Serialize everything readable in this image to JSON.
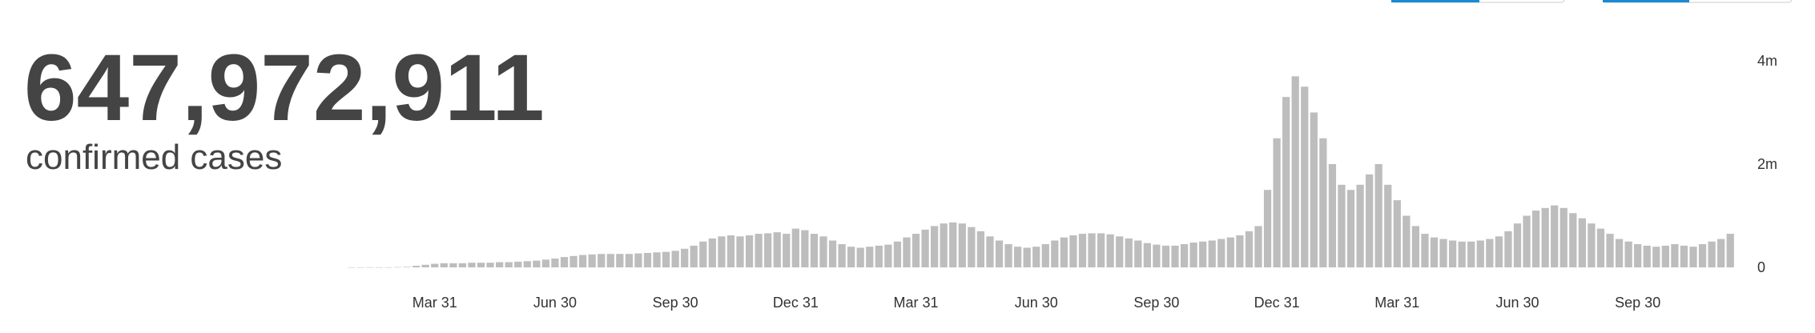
{
  "headline": {
    "value": "647,972,911",
    "label": "confirmed cases"
  },
  "chart_data": {
    "type": "bar",
    "color": "#bdbdbd",
    "categories": [
      null,
      null,
      null,
      null,
      null,
      null,
      null,
      null,
      null,
      "Mar 31",
      null,
      null,
      null,
      null,
      null,
      null,
      null,
      null,
      null,
      null,
      null,
      null,
      "Jun 30",
      null,
      null,
      null,
      null,
      null,
      null,
      null,
      null,
      null,
      null,
      null,
      null,
      "Sep 30",
      null,
      null,
      null,
      null,
      null,
      null,
      null,
      null,
      null,
      null,
      null,
      null,
      "Dec 31",
      null,
      null,
      null,
      null,
      null,
      null,
      null,
      null,
      null,
      null,
      null,
      null,
      "Mar 31",
      null,
      null,
      null,
      null,
      null,
      null,
      null,
      null,
      null,
      null,
      null,
      null,
      "Jun 30",
      null,
      null,
      null,
      null,
      null,
      null,
      null,
      null,
      null,
      null,
      null,
      null,
      "Sep 30",
      null,
      null,
      null,
      null,
      null,
      null,
      null,
      null,
      null,
      null,
      null,
      null,
      "Dec 31",
      null,
      null,
      null,
      null,
      null,
      null,
      null,
      null,
      null,
      null,
      null,
      null,
      "Mar 31",
      null,
      null,
      null,
      null,
      null,
      null,
      null,
      null,
      null,
      null,
      null,
      null,
      "Jun 30",
      null,
      null,
      null,
      null,
      null,
      null,
      null,
      null,
      null,
      null,
      null,
      null,
      "Sep 30",
      null,
      null,
      null,
      null,
      null,
      null,
      null,
      null,
      null,
      null
    ],
    "values": [
      1000,
      2000,
      3000,
      2000,
      2000,
      5000,
      10000,
      30000,
      50000,
      70000,
      80000,
      80000,
      80000,
      90000,
      90000,
      90000,
      100000,
      100000,
      110000,
      120000,
      130000,
      150000,
      170000,
      200000,
      220000,
      240000,
      250000,
      260000,
      260000,
      260000,
      260000,
      270000,
      280000,
      290000,
      300000,
      320000,
      360000,
      420000,
      500000,
      560000,
      600000,
      620000,
      600000,
      620000,
      650000,
      660000,
      680000,
      650000,
      750000,
      720000,
      650000,
      600000,
      520000,
      450000,
      400000,
      380000,
      400000,
      420000,
      440000,
      500000,
      580000,
      650000,
      730000,
      800000,
      850000,
      870000,
      850000,
      780000,
      700000,
      600000,
      520000,
      450000,
      400000,
      380000,
      400000,
      450000,
      520000,
      580000,
      620000,
      650000,
      660000,
      660000,
      640000,
      600000,
      560000,
      520000,
      470000,
      440000,
      420000,
      420000,
      450000,
      480000,
      500000,
      520000,
      550000,
      580000,
      620000,
      700000,
      800000,
      1500000,
      2500000,
      3300000,
      3700000,
      3500000,
      3000000,
      2500000,
      2000000,
      1600000,
      1500000,
      1600000,
      1800000,
      2000000,
      1600000,
      1300000,
      1000000,
      800000,
      650000,
      580000,
      550000,
      520000,
      500000,
      500000,
      520000,
      550000,
      600000,
      700000,
      850000,
      1000000,
      1100000,
      1150000,
      1200000,
      1150000,
      1050000,
      950000,
      850000,
      750000,
      650000,
      550000,
      500000,
      450000,
      420000,
      400000,
      420000,
      450000,
      420000,
      400000,
      450000,
      500000,
      550000,
      650000
    ],
    "ylim": [
      0,
      4000000
    ],
    "yticks": [
      0,
      {
        "value": 2000000,
        "label": "2m"
      },
      {
        "value": 4000000,
        "label": "4m"
      }
    ]
  }
}
